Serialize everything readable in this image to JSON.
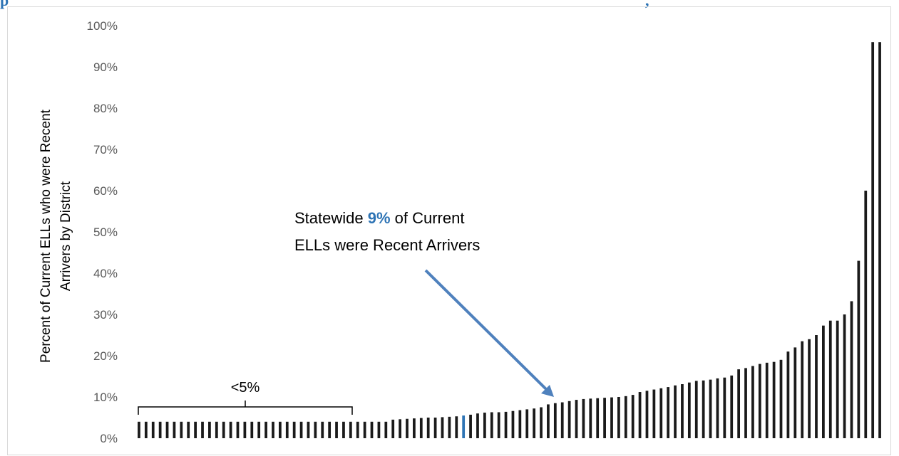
{
  "title_fragment": "p",
  "title_tail": ",",
  "chart_data": {
    "type": "bar",
    "title": "",
    "xlabel": "",
    "ylabel_lines": [
      "Percent of Current ELLs who were Recent",
      "Arrivers by District"
    ],
    "ylim": [
      0,
      100
    ],
    "yticks": [
      "0%",
      "10%",
      "20%",
      "30%",
      "40%",
      "50%",
      "60%",
      "70%",
      "80%",
      "90%",
      "100%"
    ],
    "grid": false,
    "legend": "none",
    "bar_color": "#1a1a1a",
    "highlight_color": "#2e74b5",
    "highlight_index": 46,
    "values": [
      4.0,
      4.0,
      4.0,
      4.0,
      4.0,
      4.0,
      4.0,
      4.0,
      4.0,
      4.0,
      4.0,
      4.0,
      4.0,
      4.0,
      4.0,
      4.0,
      4.0,
      4.0,
      4.0,
      4.0,
      4.0,
      4.0,
      4.0,
      4.0,
      4.0,
      4.0,
      4.0,
      4.0,
      4.0,
      4.0,
      4.0,
      4.0,
      4.0,
      4.0,
      4.0,
      4.0,
      4.5,
      4.6,
      4.7,
      4.8,
      4.9,
      5.0,
      5.0,
      5.1,
      5.2,
      5.3,
      5.5,
      5.7,
      6.0,
      6.2,
      6.3,
      6.3,
      6.4,
      6.6,
      6.8,
      7.0,
      7.2,
      7.5,
      8.2,
      8.5,
      8.7,
      9.0,
      9.3,
      9.5,
      9.6,
      9.7,
      9.8,
      9.9,
      10.0,
      10.2,
      10.5,
      11.2,
      11.5,
      11.8,
      12.1,
      12.4,
      12.8,
      13.1,
      13.5,
      13.9,
      14.0,
      14.2,
      14.5,
      14.7,
      15.2,
      16.7,
      17.0,
      17.5,
      18.0,
      18.3,
      18.5,
      19.0,
      21.0,
      22.0,
      23.5,
      24.0,
      25.0,
      27.3,
      28.5,
      28.5,
      30.0,
      33.2,
      43.0,
      60.0,
      96.0,
      96.0
    ],
    "annotation": {
      "pre": "Statewide ",
      "highlight": "9%",
      "post": " of Current",
      "line2": "ELLs were Recent Arrivers"
    },
    "bracket_label": "<5%"
  }
}
